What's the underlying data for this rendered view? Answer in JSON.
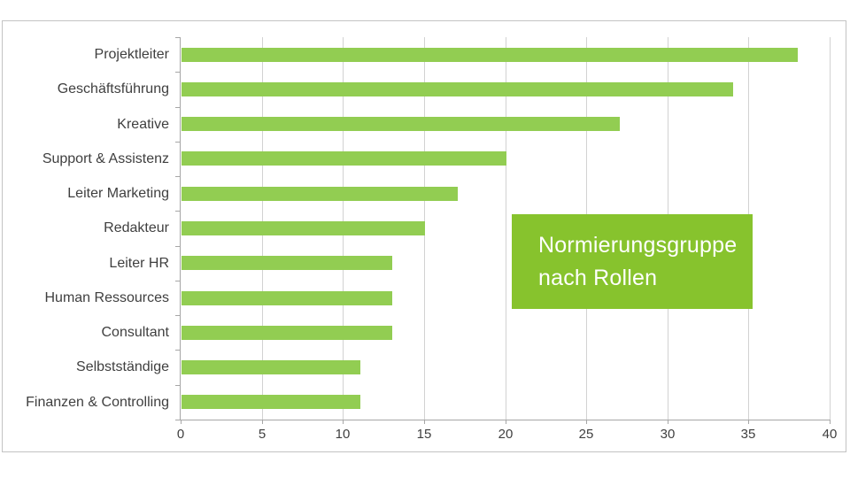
{
  "annotation": {
    "lines": [
      "Normierungsgruppe",
      "nach Rollen"
    ]
  },
  "chart_data": {
    "type": "bar",
    "orientation": "horizontal",
    "title": "",
    "xlabel": "",
    "ylabel": "",
    "categories": [
      "Projektleiter",
      "Geschäftsführung",
      "Kreative",
      "Support & Assistenz",
      "Leiter Marketing",
      "Redakteur",
      "Leiter HR",
      "Human Ressources",
      "Consultant",
      "Selbstständige",
      "Finanzen & Controlling"
    ],
    "values": [
      38,
      34,
      27,
      20,
      17,
      15,
      13,
      13,
      13,
      11,
      11
    ],
    "xlim": [
      0,
      40
    ],
    "xticks": [
      0,
      5,
      10,
      15,
      20,
      25,
      30,
      35,
      40
    ],
    "grid": true,
    "legend": false,
    "annotations": [
      "Normierungsgruppe nach Rollen"
    ],
    "colors": {
      "bar": "#92cd52",
      "annotation_box": "#87c32d",
      "gridline": "#d2d2d2",
      "axis": "#a6a6a6",
      "text": "#3f3f3f",
      "annotation_text": "#ffffff"
    }
  }
}
